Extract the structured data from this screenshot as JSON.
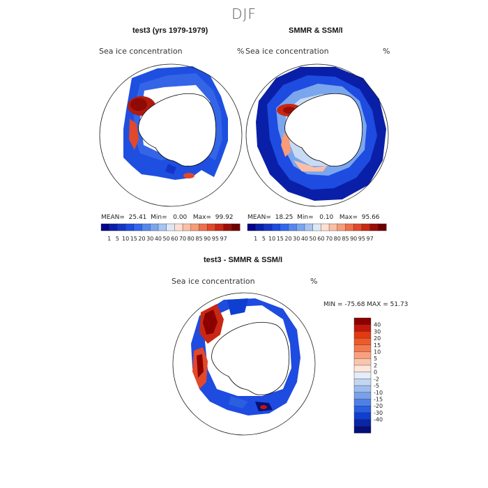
{
  "figure": {
    "title": "DJF",
    "panels": [
      {
        "id": "model",
        "title": "test3 (yrs 1979-1979)",
        "variable": "Sea ice concentration",
        "units": "%",
        "stats": {
          "mean_label": "MEAN=",
          "mean": "25.41",
          "min_label": "Min=",
          "min": "0.00",
          "max_label": "Max=",
          "max": "99.92"
        }
      },
      {
        "id": "obs",
        "title": "SMMR & SSM/I",
        "variable": "Sea ice concentration",
        "units": "%",
        "stats": {
          "mean_label": "MEAN=",
          "mean": "18.25",
          "min_label": "Min=",
          "min": "0.10",
          "max_label": "Max=",
          "max": "95.66"
        }
      },
      {
        "id": "diff",
        "title": "test3 - SMMR & SSM/I",
        "variable": "Sea ice concentration",
        "units": "%",
        "minmax_text": "MIN = -75.68 MAX =  51.73"
      }
    ],
    "abs_colorbar": {
      "labels": [
        "1",
        "5",
        "10",
        "15",
        "20",
        "30",
        "40",
        "50",
        "60",
        "70",
        "80",
        "85",
        "90",
        "95",
        "97"
      ],
      "colors": [
        "#00008b",
        "#0a1fa8",
        "#1434c8",
        "#1e4be0",
        "#3366ee",
        "#5588ee",
        "#7aa6ee",
        "#a7c4f2",
        "#dde8f6",
        "#fde0d2",
        "#fcbfa5",
        "#f79b78",
        "#ef6f4a",
        "#e2482a",
        "#c82814",
        "#9c0d06",
        "#6e0000"
      ]
    },
    "diff_colorbar": {
      "labels": [
        "40",
        "30",
        "20",
        "15",
        "10",
        "5",
        "2",
        "0",
        "-2",
        "-5",
        "-10",
        "-15",
        "-20",
        "-30",
        "-40"
      ],
      "colors": [
        "#8b0000",
        "#c4160a",
        "#e23a12",
        "#ef5a2a",
        "#f47a50",
        "#f8a080",
        "#fbc5ac",
        "#fde6da",
        "#e4edf8",
        "#c2d6f2",
        "#9dbcee",
        "#7aa0ea",
        "#5080e6",
        "#2a5fe0",
        "#0f3fd0",
        "#0a25a8",
        "#050f78"
      ]
    }
  }
}
